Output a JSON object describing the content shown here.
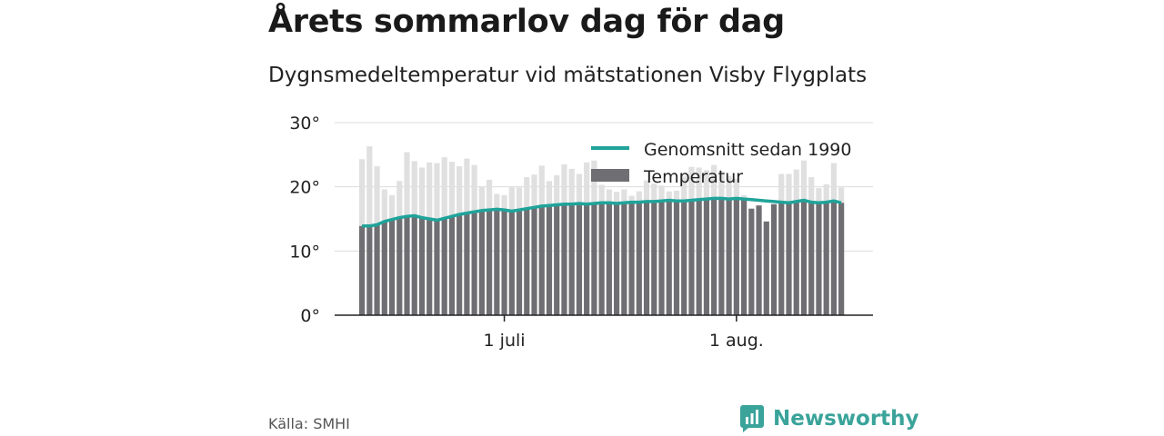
{
  "title": "Årets sommarlov dag för dag",
  "subtitle": "Dygnsmedeltemperatur vid mätstationen Visby Flygplats",
  "source": "Källa: SMHI",
  "brand": "Newsworthy",
  "colors": {
    "bars": "#6f6f73",
    "bars_light": "#e0e0e0",
    "line": "#1fa39a",
    "brand": "#3aa39a"
  },
  "chart_data": {
    "type": "bar",
    "x_start": "2021-06-12",
    "x_ticks": [
      {
        "date": "2021-07-01",
        "label": "1 juli"
      },
      {
        "date": "2021-08-01",
        "label": "1 aug."
      }
    ],
    "y_ticks": [
      {
        "value": 0,
        "label": "0°"
      },
      {
        "value": 10,
        "label": "10°"
      },
      {
        "value": 20,
        "label": "20°"
      },
      {
        "value": 30,
        "label": "30°"
      }
    ],
    "ylim": [
      0,
      30
    ],
    "legend": {
      "position": "top-right",
      "line_label": "Genomsnitt sedan 1990",
      "bar_label": "Temperatur"
    },
    "series": [
      {
        "name": "Temperatur",
        "type": "bar",
        "values": [
          24.3,
          26.3,
          23.2,
          19.6,
          18.7,
          20.9,
          25.4,
          24.0,
          23.0,
          23.8,
          23.7,
          24.6,
          23.9,
          23.2,
          24.4,
          23.4,
          20.1,
          21.1,
          18.9,
          18.7,
          20.0,
          19.9,
          21.5,
          21.9,
          23.3,
          20.9,
          21.8,
          23.5,
          22.8,
          22.0,
          23.8,
          24.1,
          20.3,
          19.6,
          19.2,
          19.6,
          18.6,
          19.3,
          21.0,
          20.5,
          20.2,
          19.3,
          19.4,
          21.6,
          23.1,
          23.0,
          22.6,
          23.4,
          22.4,
          21.7,
          21.3,
          18.7,
          16.6,
          17.1,
          14.6,
          17.3,
          22.0,
          22.0,
          22.7,
          24.1,
          21.5,
          19.8,
          20.4,
          23.7,
          19.9
        ]
      },
      {
        "name": "Genomsnitt sedan 1990",
        "type": "line",
        "values": [
          13.9,
          13.9,
          14.1,
          14.6,
          14.9,
          15.2,
          15.4,
          15.5,
          15.2,
          15.0,
          14.8,
          15.1,
          15.4,
          15.7,
          15.9,
          16.1,
          16.3,
          16.4,
          16.5,
          16.4,
          16.2,
          16.4,
          16.6,
          16.8,
          17.0,
          17.1,
          17.2,
          17.3,
          17.3,
          17.4,
          17.3,
          17.4,
          17.5,
          17.5,
          17.4,
          17.5,
          17.6,
          17.6,
          17.7,
          17.7,
          17.8,
          17.9,
          17.8,
          17.8,
          17.9,
          18.0,
          18.1,
          18.2,
          18.2,
          18.1,
          18.2,
          18.1,
          18.0,
          17.9,
          17.8,
          17.7,
          17.6,
          17.5,
          17.7,
          17.9,
          17.6,
          17.5,
          17.6,
          17.8,
          17.5
        ]
      }
    ]
  }
}
